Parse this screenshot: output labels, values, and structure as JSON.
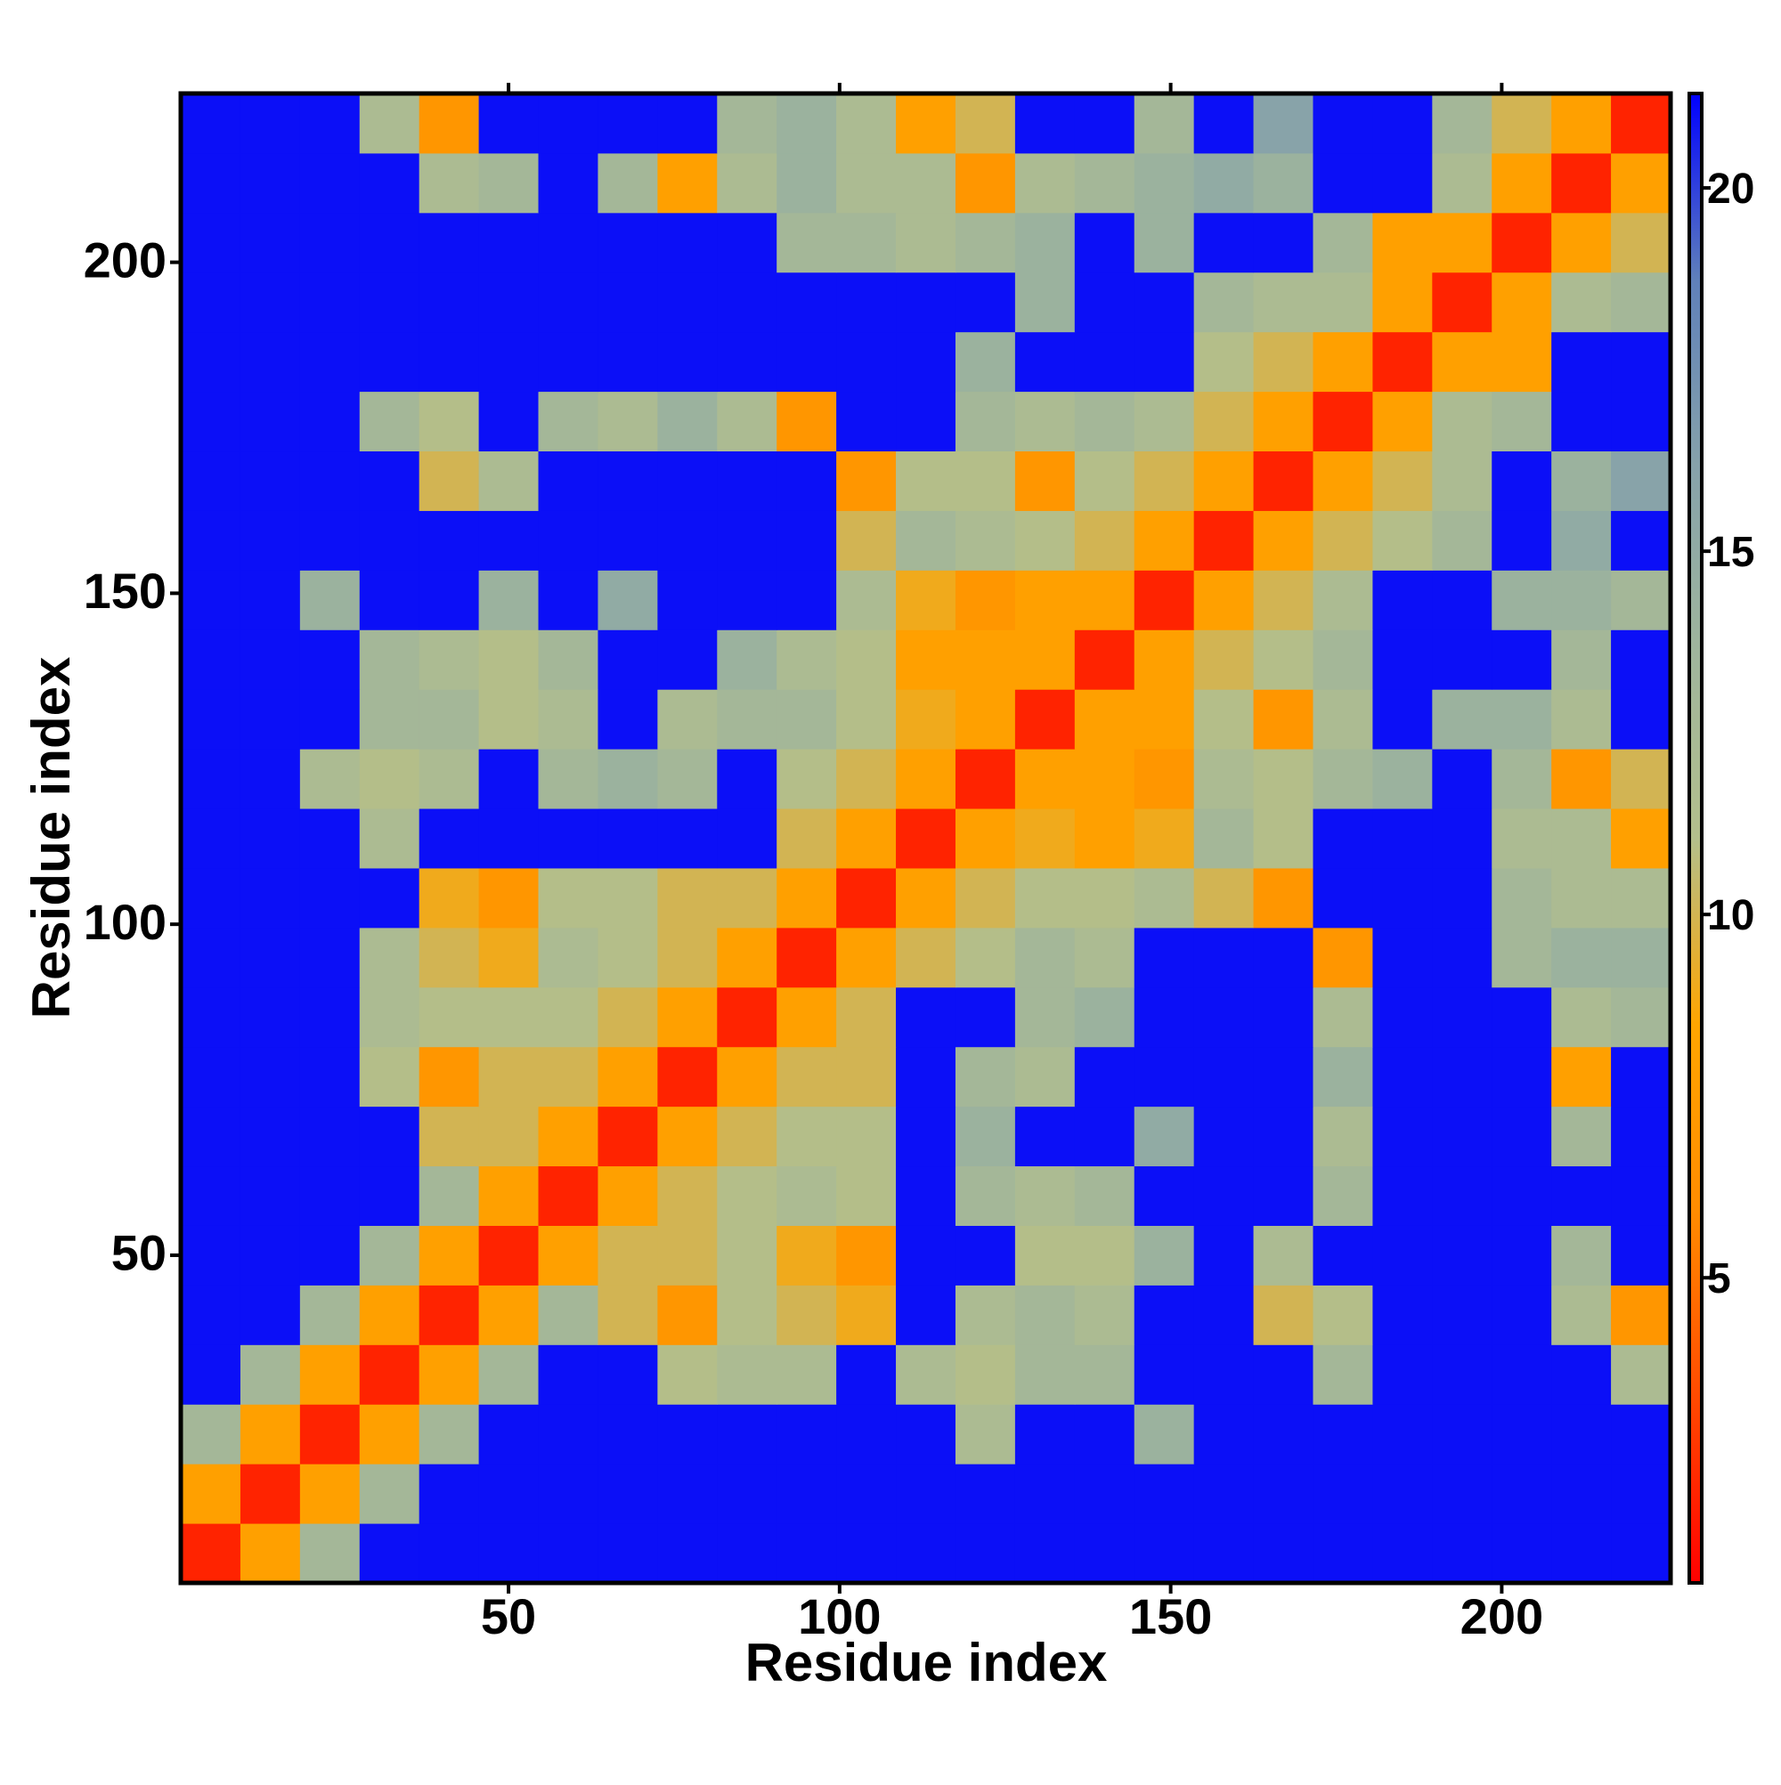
{
  "chart_data": {
    "type": "heatmap",
    "xlabel": "Residue index",
    "ylabel": "Residue index",
    "x": [
      5,
      14,
      23,
      32,
      41,
      50,
      59,
      68,
      77,
      86,
      95,
      104,
      113,
      122,
      131,
      140,
      149,
      158,
      167,
      176,
      185,
      194,
      203,
      212,
      221
    ],
    "y": [
      5,
      14,
      23,
      32,
      41,
      50,
      59,
      68,
      77,
      86,
      95,
      104,
      113,
      122,
      131,
      140,
      149,
      158,
      167,
      176,
      185,
      194,
      203,
      212,
      221
    ],
    "xlim": [
      0.5,
      225.5
    ],
    "ylim": [
      0.5,
      225.5
    ],
    "xticks": [
      50,
      100,
      150,
      200
    ],
    "yticks": [
      50,
      100,
      150,
      200
    ],
    "zlim": [
      0.8,
      21.3
    ],
    "zticks": [
      5,
      10,
      15,
      20
    ],
    "colors": [
      "#ff0000",
      "#ff4a00",
      "#ff8c00",
      "#ffa500",
      "#b3bf8c",
      "#9fb59c",
      "#86a2aa",
      "#5f80ba",
      "#0000ff"
    ],
    "values": [
      [
        2,
        8,
        13,
        21,
        21,
        21,
        21,
        21,
        21,
        21,
        21,
        21,
        21,
        21,
        21,
        21,
        21,
        21,
        21,
        21,
        21,
        21,
        21,
        21,
        21
      ],
      [
        8,
        2,
        8,
        13,
        21,
        21,
        21,
        21,
        21,
        21,
        21,
        21,
        21,
        21,
        21,
        21,
        21,
        21,
        21,
        21,
        21,
        21,
        21,
        21,
        21
      ],
      [
        13,
        8,
        2,
        8,
        13,
        21,
        21,
        21,
        21,
        21,
        21,
        21,
        21,
        12,
        21,
        21,
        14,
        21,
        21,
        21,
        21,
        21,
        21,
        21,
        21
      ],
      [
        21,
        13,
        8,
        2,
        8,
        13,
        21,
        21,
        11,
        12,
        12,
        21,
        12,
        11,
        13,
        13,
        21,
        21,
        21,
        13,
        21,
        21,
        21,
        21,
        12
      ],
      [
        21,
        21,
        13,
        8,
        2,
        8,
        13,
        10,
        7,
        11,
        10,
        9,
        21,
        12,
        13,
        12,
        21,
        21,
        10,
        11,
        21,
        21,
        21,
        12,
        7
      ],
      [
        21,
        21,
        21,
        13,
        8,
        2,
        8,
        10,
        10,
        11,
        9,
        7,
        21,
        21,
        11,
        11,
        14,
        21,
        12,
        21,
        21,
        21,
        21,
        13,
        21
      ],
      [
        21,
        21,
        21,
        21,
        13,
        8,
        2,
        8,
        10,
        11,
        12,
        11,
        21,
        13,
        12,
        13,
        21,
        21,
        21,
        13,
        21,
        21,
        21,
        21,
        21
      ],
      [
        21,
        21,
        21,
        21,
        10,
        10,
        8,
        2,
        8,
        10,
        11,
        11,
        21,
        14,
        21,
        21,
        15,
        21,
        21,
        12,
        21,
        21,
        21,
        13,
        21
      ],
      [
        21,
        21,
        21,
        11,
        7,
        10,
        10,
        8,
        2,
        8,
        10,
        10,
        21,
        13,
        12,
        21,
        21,
        21,
        21,
        14,
        21,
        21,
        21,
        8,
        21
      ],
      [
        21,
        21,
        21,
        12,
        11,
        11,
        11,
        10,
        8,
        2,
        8,
        10,
        21,
        21,
        13,
        14,
        21,
        21,
        21,
        12,
        21,
        21,
        21,
        12,
        13
      ],
      [
        21,
        21,
        21,
        12,
        10,
        9,
        12,
        11,
        10,
        8,
        2,
        8,
        10,
        11,
        13,
        12,
        21,
        21,
        21,
        7,
        21,
        21,
        13,
        14,
        14
      ],
      [
        21,
        21,
        21,
        21,
        9,
        7,
        11,
        11,
        10,
        10,
        8,
        2,
        8,
        10,
        11,
        11,
        12,
        10,
        7,
        21,
        21,
        21,
        13,
        12,
        12
      ],
      [
        21,
        21,
        21,
        12,
        21,
        21,
        21,
        21,
        21,
        21,
        10,
        8,
        2,
        8,
        9,
        8,
        9,
        13,
        11,
        21,
        21,
        21,
        12,
        12,
        8
      ],
      [
        21,
        21,
        12,
        11,
        12,
        21,
        13,
        14,
        13,
        21,
        11,
        10,
        8,
        2,
        8,
        8,
        7,
        12,
        11,
        13,
        14,
        21,
        13,
        7,
        10
      ],
      [
        21,
        21,
        21,
        13,
        13,
        11,
        12,
        21,
        12,
        13,
        13,
        11,
        9,
        8,
        2,
        8,
        8,
        11,
        7,
        12,
        21,
        14,
        14,
        12,
        21
      ],
      [
        21,
        21,
        21,
        13,
        12,
        11,
        13,
        21,
        21,
        14,
        12,
        11,
        8,
        8,
        8,
        2,
        8,
        10,
        11,
        13,
        21,
        21,
        21,
        13,
        21
      ],
      [
        21,
        21,
        14,
        21,
        21,
        14,
        21,
        15,
        21,
        21,
        21,
        12,
        9,
        7,
        8,
        8,
        2,
        8,
        10,
        12,
        21,
        21,
        14,
        14,
        13
      ],
      [
        21,
        21,
        21,
        21,
        21,
        21,
        21,
        21,
        21,
        21,
        21,
        10,
        13,
        12,
        11,
        10,
        8,
        2,
        8,
        10,
        11,
        13,
        21,
        15,
        21
      ],
      [
        21,
        21,
        21,
        21,
        10,
        12,
        21,
        21,
        21,
        21,
        21,
        7,
        11,
        11,
        7,
        11,
        10,
        8,
        2,
        8,
        10,
        12,
        21,
        14,
        16
      ],
      [
        21,
        21,
        21,
        13,
        11,
        21,
        13,
        12,
        14,
        12,
        7,
        21,
        21,
        13,
        12,
        13,
        12,
        10,
        8,
        2,
        8,
        12,
        13,
        21,
        21
      ],
      [
        21,
        21,
        21,
        21,
        21,
        21,
        21,
        21,
        21,
        21,
        21,
        21,
        21,
        14,
        21,
        21,
        21,
        11,
        10,
        8,
        2,
        8,
        8,
        21,
        21
      ],
      [
        21,
        21,
        21,
        21,
        21,
        21,
        21,
        21,
        21,
        21,
        21,
        21,
        21,
        21,
        14,
        21,
        21,
        13,
        12,
        12,
        8,
        2,
        8,
        12,
        13
      ],
      [
        21,
        21,
        21,
        21,
        21,
        21,
        21,
        21,
        21,
        21,
        13,
        13,
        12,
        13,
        14,
        21,
        14,
        21,
        21,
        13,
        8,
        8,
        2,
        8,
        10
      ],
      [
        21,
        21,
        21,
        21,
        12,
        13,
        21,
        13,
        8,
        12,
        14,
        12,
        12,
        7,
        12,
        13,
        14,
        15,
        14,
        21,
        21,
        12,
        8,
        2,
        8
      ],
      [
        21,
        21,
        21,
        12,
        7,
        21,
        21,
        21,
        21,
        13,
        14,
        12,
        8,
        10,
        21,
        21,
        13,
        21,
        16,
        21,
        21,
        13,
        10,
        8,
        2
      ]
    ]
  }
}
